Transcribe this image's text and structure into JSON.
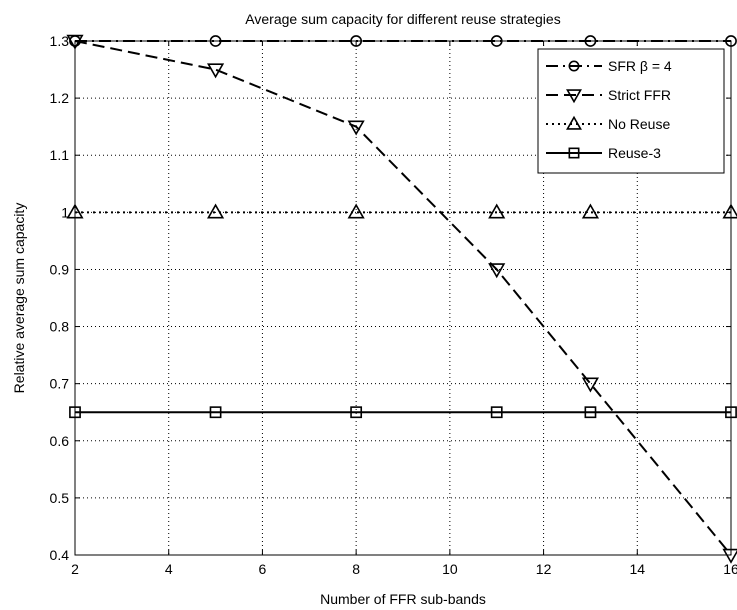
{
  "chart_data": {
    "type": "line",
    "title": "Average sum capacity for different reuse strategies",
    "xlabel": "Number of FFR sub-bands",
    "ylabel": "Relative average sum capacity",
    "xlim": [
      2,
      16
    ],
    "ylim": [
      0.4,
      1.3
    ],
    "xticks": [
      2,
      4,
      6,
      8,
      10,
      12,
      14,
      16
    ],
    "xtick_labels": [
      "2",
      "4",
      "6",
      "8",
      "10",
      "12",
      "14",
      "16"
    ],
    "yticks": [
      0.4,
      0.5,
      0.6,
      0.7,
      0.8,
      0.9,
      1.0,
      1.1,
      1.2,
      1.3
    ],
    "ytick_labels": [
      "0.4",
      "0.5",
      "0.6",
      "0.7",
      "0.8",
      "0.9",
      "1",
      "1.1",
      "1.2",
      "1.3"
    ],
    "grid": true,
    "legend_position": "top-right",
    "series": [
      {
        "name": "SFR β = 4",
        "line_style": "dash-dot",
        "marker": "circle",
        "color": "#000000",
        "x": [
          2,
          5,
          8,
          11,
          13,
          16
        ],
        "y": [
          1.3,
          1.3,
          1.3,
          1.3,
          1.3,
          1.3
        ]
      },
      {
        "name": "Strict FFR",
        "line_style": "dashed",
        "marker": "triangle-down",
        "color": "#000000",
        "x": [
          2,
          5,
          8,
          11,
          13,
          16
        ],
        "y": [
          1.3,
          1.25,
          1.15,
          0.9,
          0.7,
          0.4
        ]
      },
      {
        "name": "No Reuse",
        "line_style": "dotted",
        "marker": "triangle-up",
        "color": "#000000",
        "x": [
          2,
          5,
          8,
          11,
          13,
          16
        ],
        "y": [
          1.0,
          1.0,
          1.0,
          1.0,
          1.0,
          1.0
        ]
      },
      {
        "name": "Reuse-3",
        "line_style": "solid",
        "marker": "square",
        "color": "#000000",
        "x": [
          2,
          5,
          8,
          11,
          13,
          16
        ],
        "y": [
          0.65,
          0.65,
          0.65,
          0.65,
          0.65,
          0.65
        ]
      }
    ]
  }
}
